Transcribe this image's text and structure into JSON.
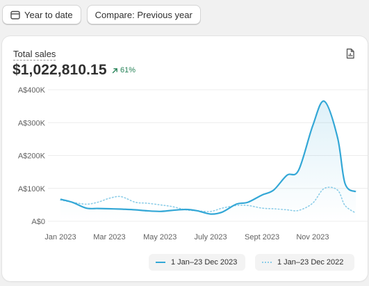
{
  "toolbar": {
    "date_range_label": "Year to date",
    "compare_label": "Compare: Previous year"
  },
  "metric": {
    "label": "Total sales",
    "value": "$1,022,810.15",
    "change": "61%"
  },
  "colors": {
    "current": "#33a7d6",
    "previous": "#8ccde8",
    "positive": "#29845a"
  },
  "chart_data": {
    "type": "line",
    "y_ticks": [
      "A$0",
      "A$100K",
      "A$200K",
      "A$300K",
      "A$400K"
    ],
    "x_ticks": [
      "Jan 2023",
      "Mar 2023",
      "May 2023",
      "July 2023",
      "Sept 2023",
      "Nov 2023"
    ],
    "ylim": [
      0,
      400000
    ],
    "grid": true,
    "legend_position": "bottom-right",
    "x_dates": [
      "2023-01-01",
      "2023-01-15",
      "2023-02-01",
      "2023-02-15",
      "2023-03-01",
      "2023-03-15",
      "2023-04-01",
      "2023-04-15",
      "2023-05-01",
      "2023-05-15",
      "2023-06-01",
      "2023-06-15",
      "2023-07-01",
      "2023-07-15",
      "2023-08-01",
      "2023-08-15",
      "2023-09-01",
      "2023-09-15",
      "2023-10-01",
      "2023-10-15",
      "2023-11-01",
      "2023-11-15",
      "2023-12-01",
      "2023-12-10",
      "2023-12-23"
    ],
    "series": [
      {
        "name": "1 Jan–23 Dec 2023",
        "style": "solid",
        "values": [
          67000,
          58000,
          40000,
          39000,
          38000,
          37000,
          35000,
          32000,
          30000,
          33000,
          36000,
          32000,
          22000,
          28000,
          52000,
          58000,
          80000,
          95000,
          140000,
          155000,
          290000,
          365000,
          255000,
          115000,
          90000
        ]
      },
      {
        "name": "1 Jan–23 Dec 2022",
        "style": "dotted",
        "values": [
          65000,
          58000,
          52000,
          58000,
          70000,
          75000,
          58000,
          55000,
          50000,
          45000,
          35000,
          32000,
          30000,
          40000,
          48000,
          48000,
          40000,
          38000,
          35000,
          33000,
          55000,
          100000,
          95000,
          48000,
          25000
        ]
      }
    ]
  }
}
